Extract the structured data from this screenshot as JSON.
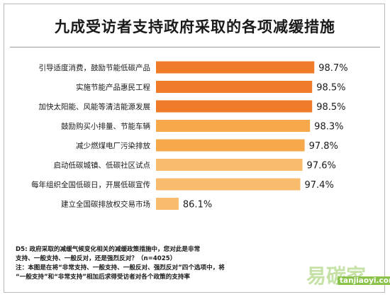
{
  "chart_data": {
    "type": "bar",
    "orientation": "horizontal",
    "title": "九成受访者支持政府采取的各项减缓措施",
    "categories": [
      "引导适度消费，鼓励节能低碳产品",
      "实施节能产品惠民工程",
      "加快太阳能、风能等清洁能源发展",
      "鼓励购买小排量、节能车辆",
      "减少燃煤电厂污染排放",
      "启动低碳城镇、低碳社区试点",
      "每年组织全国低碳日，开展低碳宣传",
      "建立全国碳排放权交易市场"
    ],
    "values": [
      98.7,
      98.5,
      98.5,
      98.3,
      97.8,
      97.6,
      97.4,
      86.1
    ],
    "value_labels": [
      "98.7%",
      "98.5%",
      "98.5%",
      "98.3%",
      "97.8%",
      "97.6%",
      "97.4%",
      "86.1%"
    ],
    "xlim": [
      0,
      100
    ],
    "grid": false,
    "legend": "none",
    "colors": {
      "dark": "#f07c29",
      "light": "#f7a84b",
      "lighter": "#f9bc6c"
    }
  },
  "notes": {
    "line1": "D5: 政府采取的减缓气候变化相关的减缓政策措施中，您对此是非常",
    "line2": "支持、一般支持、一般反对，还是强烈反对？（n=4025）",
    "line3": "注：本图是在将“非常支持、一般支持、一般反对、强烈反对”四个选项中，将",
    "line4": "“一般支持”和“非常支持”相加后求得受访者对各个政策的支持率"
  },
  "watermark": {
    "big": "易碳家",
    "small": "tanjiaoyi.com"
  }
}
